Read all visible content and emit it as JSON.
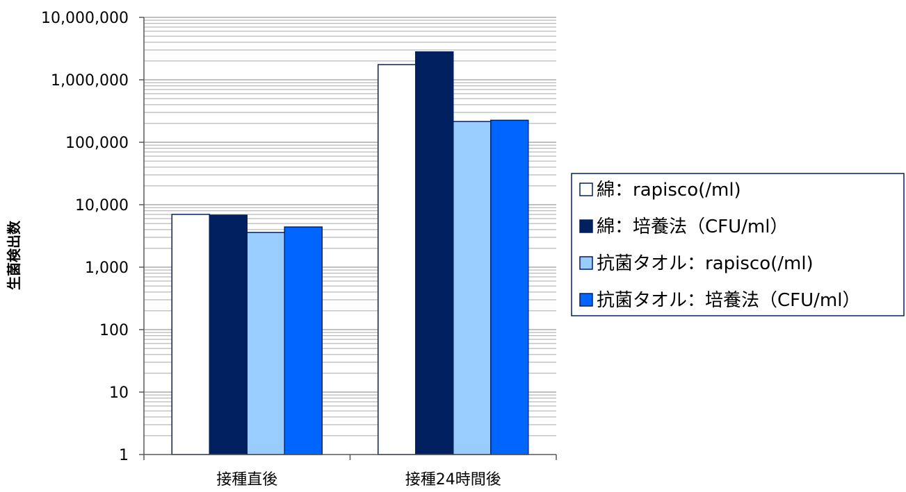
{
  "chart_data": {
    "type": "bar",
    "yscale": "log",
    "ylim": [
      1,
      10000000
    ],
    "ylabel": "生菌検出数",
    "xlabel": "",
    "title": "",
    "y_ticks": [
      {
        "value": 1,
        "label": "1"
      },
      {
        "value": 10,
        "label": "10"
      },
      {
        "value": 100,
        "label": "100"
      },
      {
        "value": 1000,
        "label": "1,000"
      },
      {
        "value": 10000,
        "label": "10,000"
      },
      {
        "value": 100000,
        "label": "100,000"
      },
      {
        "value": 1000000,
        "label": "1,000,000"
      },
      {
        "value": 10000000,
        "label": "10,000,000"
      }
    ],
    "categories": [
      "接種直後",
      "接種24時間後"
    ],
    "series": [
      {
        "name": "綿：rapisco(/ml)",
        "color": "#ffffff",
        "values": [
          7000,
          1750000
        ]
      },
      {
        "name": "綿：培養法（CFU/ml）",
        "color": "#002060",
        "values": [
          6800,
          2800000
        ]
      },
      {
        "name": "抗菌タオル：rapisco(/ml)",
        "color": "#99ccff",
        "values": [
          3600,
          215000
        ]
      },
      {
        "name": "抗菌タオル：培養法（CFU/ml）",
        "color": "#0066ff",
        "values": [
          4400,
          225000
        ]
      }
    ],
    "grid": true,
    "legend_position": "right"
  }
}
